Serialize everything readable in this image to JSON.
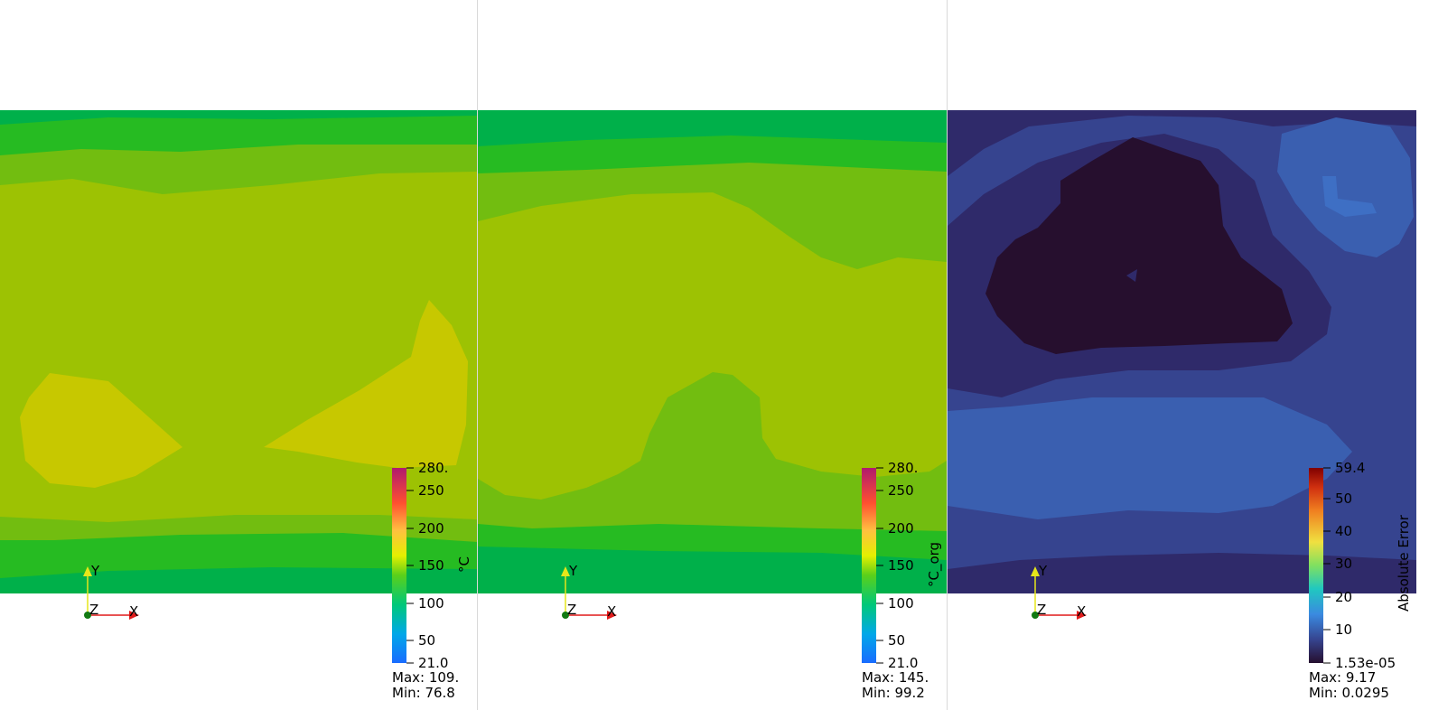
{
  "views": [
    {
      "id": "view-1",
      "colorbar": {
        "title": "°C",
        "ticks": [
          "280.",
          "250",
          "200",
          "150",
          "100",
          "50",
          "21.0"
        ],
        "palette": "temperature"
      },
      "stats": {
        "max": "Max: 109.",
        "min": "Min: 76.8"
      },
      "axes": {
        "x": "X",
        "y": "Y",
        "z": "Z"
      }
    },
    {
      "id": "view-2",
      "colorbar": {
        "title": "°C_org",
        "ticks": [
          "280.",
          "250",
          "200",
          "150",
          "100",
          "50",
          "21.0"
        ],
        "palette": "temperature"
      },
      "stats": {
        "max": "Max: 145.",
        "min": "Min: 99.2"
      },
      "axes": {
        "x": "X",
        "y": "Y",
        "z": "Z"
      }
    },
    {
      "id": "view-3",
      "colorbar": {
        "title": "Absolute Error",
        "ticks": [
          "59.4",
          "50",
          "40",
          "30",
          "20",
          "10",
          "1.53e-05"
        ],
        "palette": "error"
      },
      "stats": {
        "max": "Max: 9.17",
        "min": "Min: 0.0295"
      },
      "axes": {
        "x": "X",
        "y": "Y",
        "z": "Z"
      }
    }
  ],
  "colors": {
    "green_dark": "#00b04a",
    "green_mid": "#26bb22",
    "green_yellow": "#72bd10",
    "yellow_green": "#9dc203",
    "yellow": "#c7c800",
    "err_darkest": "#260f2e",
    "err_dark": "#2f2a6a",
    "err_mid": "#36448f",
    "err_light": "#3a5fb0",
    "err_lighter": "#3e6fc4",
    "axis_x": "#e11a1a",
    "axis_y": "#e6e61a",
    "axis_origin": "#127a12"
  }
}
